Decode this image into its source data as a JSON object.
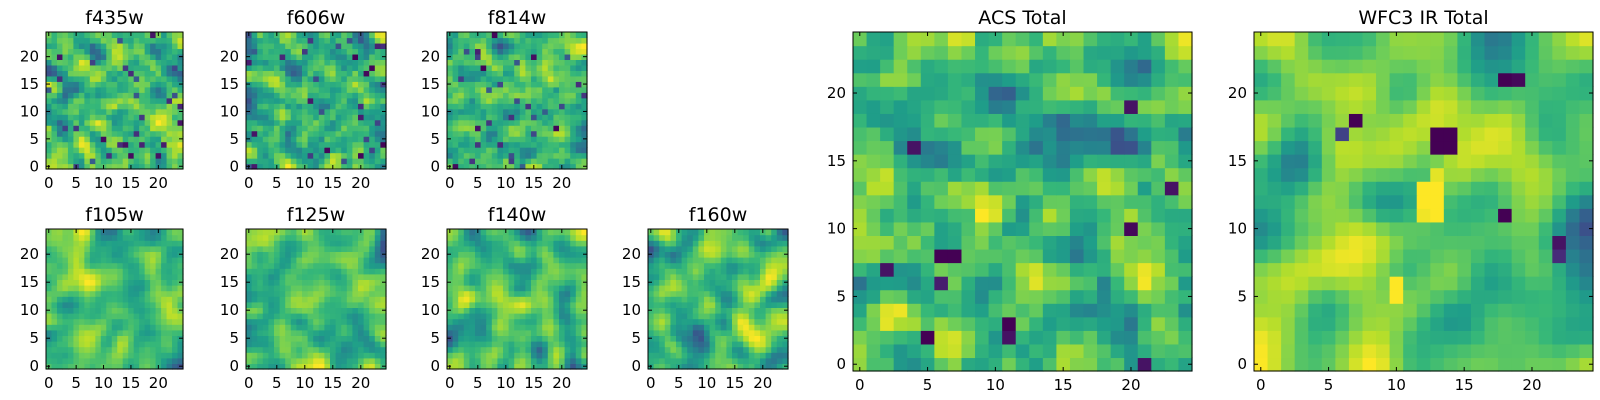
{
  "figure": {
    "colormap": "viridis",
    "colors": {
      "low": "#440154",
      "mid": "#21918c",
      "high": "#fde725",
      "frame": "#000000",
      "background": "#ffffff"
    }
  },
  "chart_data": [
    {
      "id": "f435w",
      "type": "heatmap",
      "title": "f435w",
      "grid": false,
      "size": 25,
      "seed": 11,
      "smooth": 0.15,
      "xticks": [
        0,
        5,
        10,
        15,
        20
      ],
      "yticks": [
        0,
        5,
        10,
        15,
        20
      ],
      "xlim": [
        -0.5,
        24.5
      ],
      "ylim": [
        -0.5,
        24.5
      ]
    },
    {
      "id": "f606w",
      "type": "heatmap",
      "title": "f606w",
      "grid": false,
      "size": 25,
      "seed": 23,
      "smooth": 0.15,
      "xticks": [
        0,
        5,
        10,
        15,
        20
      ],
      "yticks": [
        0,
        5,
        10,
        15,
        20
      ],
      "xlim": [
        -0.5,
        24.5
      ],
      "ylim": [
        -0.5,
        24.5
      ]
    },
    {
      "id": "f814w",
      "type": "heatmap",
      "title": "f814w",
      "grid": false,
      "size": 25,
      "seed": 37,
      "smooth": 0.15,
      "xticks": [
        0,
        5,
        10,
        15,
        20
      ],
      "yticks": [
        0,
        5,
        10,
        15,
        20
      ],
      "xlim": [
        -0.5,
        24.5
      ],
      "ylim": [
        -0.5,
        24.5
      ]
    },
    {
      "id": "f105w",
      "type": "heatmap",
      "title": "f105w",
      "grid": false,
      "size": 25,
      "seed": 41,
      "smooth": 0.55,
      "xticks": [
        0,
        5,
        10,
        15,
        20
      ],
      "yticks": [
        0,
        5,
        10,
        15,
        20
      ],
      "xlim": [
        -0.5,
        24.5
      ],
      "ylim": [
        -0.5,
        24.5
      ]
    },
    {
      "id": "f125w",
      "type": "heatmap",
      "title": "f125w",
      "grid": false,
      "size": 25,
      "seed": 53,
      "smooth": 0.6,
      "xticks": [
        0,
        5,
        10,
        15,
        20
      ],
      "yticks": [
        0,
        5,
        10,
        15,
        20
      ],
      "xlim": [
        -0.5,
        24.5
      ],
      "ylim": [
        -0.5,
        24.5
      ]
    },
    {
      "id": "f140w",
      "type": "heatmap",
      "title": "f140w",
      "grid": false,
      "size": 25,
      "seed": 67,
      "smooth": 0.55,
      "xticks": [
        0,
        5,
        10,
        15,
        20
      ],
      "yticks": [
        0,
        5,
        10,
        15,
        20
      ],
      "xlim": [
        -0.5,
        24.5
      ],
      "ylim": [
        -0.5,
        24.5
      ]
    },
    {
      "id": "f160w",
      "type": "heatmap",
      "title": "f160w",
      "grid": false,
      "size": 25,
      "seed": 79,
      "smooth": 0.45,
      "xticks": [
        0,
        5,
        10,
        15,
        20
      ],
      "yticks": [
        0,
        5,
        10,
        15,
        20
      ],
      "xlim": [
        -0.5,
        24.5
      ],
      "ylim": [
        -0.5,
        24.5
      ]
    },
    {
      "id": "acs-total",
      "type": "heatmap",
      "title": "ACS Total",
      "grid": false,
      "size": 25,
      "seed": 97,
      "smooth": 0.2,
      "xticks": [
        0,
        5,
        10,
        15,
        20
      ],
      "yticks": [
        0,
        5,
        10,
        15,
        20
      ],
      "xlim": [
        -0.5,
        24.5
      ],
      "ylim": [
        -0.5,
        24.5
      ],
      "hotspots": [
        [
          6,
          8,
          0.0
        ],
        [
          7,
          8,
          0.0
        ],
        [
          11,
          3,
          0.0
        ],
        [
          20,
          10,
          0.02
        ],
        [
          2,
          7,
          0.05
        ],
        [
          4,
          16,
          0.05
        ],
        [
          6,
          6,
          0.08
        ],
        [
          20,
          19,
          0.05
        ],
        [
          23,
          13,
          0.05
        ],
        [
          5,
          2,
          0.0
        ],
        [
          11,
          2,
          0.05
        ],
        [
          21,
          0,
          0.05
        ]
      ]
    },
    {
      "id": "wfc3-ir-total",
      "type": "heatmap",
      "title": "WFC3 IR Total",
      "grid": false,
      "size": 25,
      "seed": 113,
      "smooth": 0.7,
      "xticks": [
        0,
        5,
        10,
        15,
        20
      ],
      "yticks": [
        0,
        5,
        10,
        15,
        20
      ],
      "xlim": [
        -0.5,
        24.5
      ],
      "ylim": [
        -0.5,
        24.5
      ],
      "hotspots": [
        [
          13,
          17,
          0.0
        ],
        [
          14,
          17,
          0.0
        ],
        [
          13,
          16,
          0.0
        ],
        [
          14,
          16,
          0.0
        ],
        [
          7,
          18,
          0.0
        ],
        [
          18,
          21,
          0.0
        ],
        [
          19,
          21,
          0.02
        ],
        [
          18,
          11,
          0.0
        ],
        [
          22,
          9,
          0.05
        ],
        [
          22,
          8,
          0.12
        ],
        [
          6,
          17,
          0.2
        ]
      ],
      "brightspots": [
        [
          12,
          13,
          1.0
        ],
        [
          13,
          13,
          1.0
        ],
        [
          12,
          12,
          1.0
        ],
        [
          13,
          12,
          1.0
        ],
        [
          13,
          11,
          1.0
        ],
        [
          12,
          11,
          0.98
        ],
        [
          13,
          14,
          0.96
        ],
        [
          10,
          6,
          1.0
        ],
        [
          10,
          5,
          1.0
        ]
      ]
    }
  ]
}
